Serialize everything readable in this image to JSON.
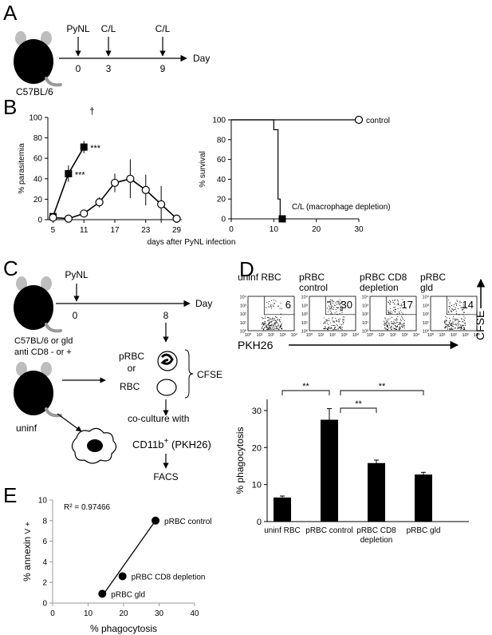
{
  "panels": {
    "a": {
      "letter": "A",
      "timeline": {
        "events": [
          {
            "label": "PyNL",
            "day": "0"
          },
          {
            "label": "C/L",
            "day": "3"
          },
          {
            "label": "C/L",
            "day": "9"
          }
        ],
        "axis_label": "Day",
        "mouse_label": "C57BL/6"
      }
    },
    "b": {
      "letter": "B",
      "shared_xlabel": "days after PyNL infection",
      "dagger": "†",
      "left_chart": {
        "type": "line",
        "ylabel": "% parasitemia",
        "ylim": [
          0,
          100
        ],
        "yticks": [
          "0",
          "20",
          "40",
          "60",
          "80",
          "100"
        ],
        "xticks": [
          "5",
          "11",
          "17",
          "23",
          "29"
        ],
        "xlim": [
          4,
          30
        ],
        "series": [
          {
            "marker": "filled-square",
            "x": [
              5,
              8,
              11
            ],
            "y": [
              3,
              45,
              71
            ],
            "err": [
              1,
              8,
              6
            ],
            "sig": [
              "",
              "***",
              "***"
            ]
          },
          {
            "marker": "open-circle",
            "x": [
              5,
              8,
              11,
              14,
              17,
              20,
              23,
              26,
              29
            ],
            "y": [
              2,
              1,
              6,
              17,
              36,
              40,
              29,
              15,
              1
            ],
            "err": [
              0,
              0,
              2,
              5,
              9,
              19,
              15,
              18,
              0
            ]
          }
        ]
      },
      "right_chart": {
        "type": "line",
        "ylabel": "% survival",
        "ylim": [
          0,
          100
        ],
        "yticks": [
          "0",
          "20",
          "40",
          "60",
          "80",
          "100"
        ],
        "xticks": [
          "0",
          "10",
          "20",
          "30"
        ],
        "xlim": [
          0,
          30
        ],
        "series": [
          {
            "name": "control",
            "marker": "open-circle",
            "steps": [
              [
                0,
                100
              ],
              [
                30,
                100
              ]
            ]
          },
          {
            "name": "C/L (macrophage depletion)",
            "marker": "filled-square",
            "steps": [
              [
                0,
                100
              ],
              [
                10,
                100
              ],
              [
                10,
                90
              ],
              [
                11,
                90
              ],
              [
                11,
                20
              ],
              [
                11.5,
                20
              ],
              [
                11.5,
                0
              ],
              [
                12,
                0
              ]
            ]
          }
        ]
      }
    },
    "c": {
      "letter": "C",
      "timeline": {
        "events": [
          {
            "label": "PyNL",
            "day": "0"
          },
          {
            "label": "",
            "day": "8"
          }
        ],
        "axis_label": "Day"
      },
      "mouse_label_line1": "C57BL/6 or gld",
      "mouse_label_line2": "anti CD8 - or +",
      "prbc": "pRBC",
      "or": "or",
      "rbc": "RBC",
      "cfse": "CFSE",
      "uninf": "uninf",
      "coculture": "co-culture with",
      "cd11b": "CD11b",
      "cd11b_sup": "+",
      "pkh": "(PKH26)",
      "facs": "FACS"
    },
    "d": {
      "letter": "D",
      "flow": {
        "plots": [
          {
            "title_line1": "uninf RBC",
            "title_line2": "",
            "value": "6"
          },
          {
            "title_line1": "pRBC",
            "title_line2": "control",
            "value": "30"
          },
          {
            "title_line1": "pRBC CD8",
            "title_line2": "depletion",
            "value": "17"
          },
          {
            "title_line1": "pRBC",
            "title_line2": "gld",
            "value": "14"
          }
        ],
        "tick_labels": [
          "10⁰",
          "10¹",
          "10²",
          "10³",
          "10⁴"
        ],
        "x_axis_label": "PKH26",
        "y_axis_label": "CFSE"
      },
      "bar_chart": {
        "type": "bar",
        "ylabel": "% phagocytosis",
        "ylim": [
          0,
          33
        ],
        "yticks": [
          "0",
          "10",
          "20",
          "30"
        ],
        "categories": [
          "uninf RBC",
          "pRBC control",
          "pRBC CD8 depletion",
          "pRBC gld"
        ],
        "category_lines": [
          [
            "uninf RBC"
          ],
          [
            "pRBC control"
          ],
          [
            "pRBC CD8",
            "depletion"
          ],
          [
            "pRBC gld"
          ]
        ],
        "values": [
          6.5,
          27.5,
          15.8,
          12.7
        ],
        "errors": [
          0.4,
          3.0,
          0.8,
          0.6
        ],
        "significance": [
          {
            "from": 0,
            "to": 1,
            "label": "**"
          },
          {
            "from": 1,
            "to": 2,
            "label": "**"
          },
          {
            "from": 1,
            "to": 3,
            "label": "**"
          }
        ]
      }
    },
    "e": {
      "letter": "E",
      "scatter_chart": {
        "type": "scatter",
        "ylabel_main": "% annexin",
        "ylabel_sub": "V +",
        "xlabel": "% phagocytosis",
        "xlim": [
          0,
          40
        ],
        "ylim": [
          0,
          10
        ],
        "xticks": [
          "0",
          "10",
          "20",
          "30",
          "40"
        ],
        "yticks": [
          "0",
          "2",
          "4",
          "6",
          "8",
          "10"
        ],
        "r2": "R² = 0.97466",
        "points": [
          {
            "name": "pRBC gld",
            "x": 14,
            "y": 0.9
          },
          {
            "name": "pRBC CD8 depletion",
            "x": 19.7,
            "y": 2.6
          },
          {
            "name": "pRBC control",
            "x": 29,
            "y": 8.0
          }
        ],
        "fit": [
          [
            14,
            0.7
          ],
          [
            29,
            8.0
          ]
        ]
      }
    }
  }
}
